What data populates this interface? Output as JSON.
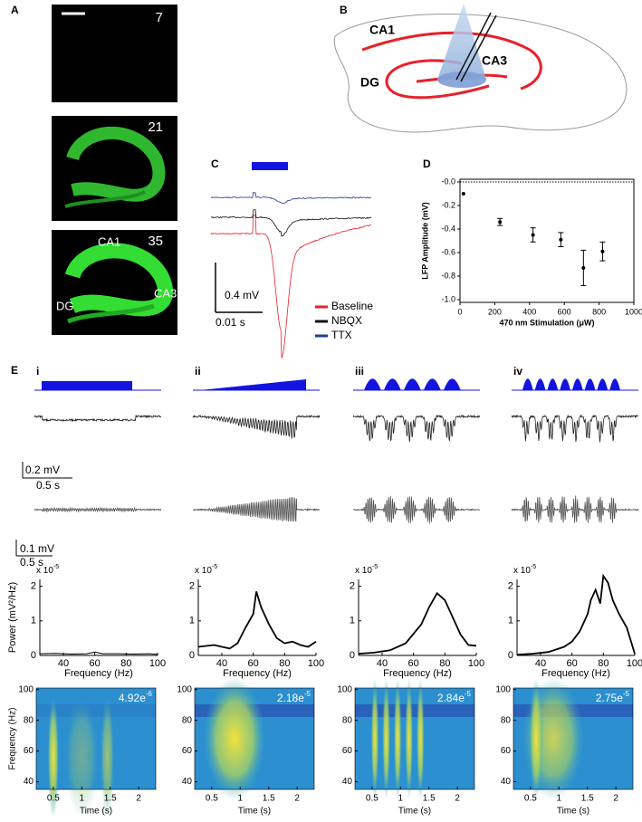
{
  "panel_labels": [
    "A",
    "B",
    "C",
    "D",
    "E"
  ],
  "panel_a": {
    "image_numbers": [
      "7",
      "21",
      "35"
    ],
    "regions": [
      "CA1",
      "CA3",
      "DG"
    ]
  },
  "panel_b": {
    "labels": [
      "CA1",
      "CA3",
      "DG"
    ]
  },
  "panel_c": {
    "scale_voltage": "0.4 mV",
    "scale_time": "0.01 s",
    "legend": [
      {
        "name": "Baseline",
        "color": "#e8202a"
      },
      {
        "name": "NBQX",
        "color": "#111111"
      },
      {
        "name": "TTX",
        "color": "#1f3f8f"
      }
    ]
  },
  "panel_e": {
    "columns": [
      "i",
      "ii",
      "iii",
      "iv"
    ],
    "scale_1": [
      "0.2 mV",
      "0.5 s"
    ],
    "scale_2": [
      "0.1 mV",
      "0.5 s"
    ]
  },
  "chart_data": [
    {
      "type": "errorbar",
      "xlabel": "470 nm Stimulation (μW)",
      "ylabel": "LFP Amplitude (mV)",
      "xlim": [
        0,
        1000
      ],
      "xticks": [
        0,
        200,
        400,
        600,
        800,
        1000
      ],
      "ylim": [
        -1,
        0
      ],
      "yticks": [
        {
          "value": -1,
          "label": "-1.0"
        },
        -0.8,
        -0.6,
        -0.4,
        -0.2,
        {
          "value": 0,
          "label": "-0.0"
        }
      ],
      "reference_line": 0,
      "color": "#000000",
      "series": [
        {
          "x": [
            20,
            230,
            420,
            580,
            710,
            820
          ],
          "values": [
            -0.1,
            -0.34,
            -0.45,
            -0.49,
            -0.73,
            -0.59
          ],
          "errors": [
            0,
            0.03,
            0.06,
            0.06,
            0.15,
            0.08
          ]
        }
      ]
    },
    {
      "type": "line",
      "xlabel": "Frequency (Hz)",
      "ylabel": "Power (mV²/Hz)",
      "multiplier": {
        "base": "x 10",
        "exponent": "-5"
      },
      "xlim": [
        25,
        100
      ],
      "xticks": [
        40,
        60,
        80,
        100
      ],
      "ylim": [
        0,
        2.2
      ],
      "yticks": [
        0,
        1,
        2
      ],
      "color": "#000000",
      "x": [
        25,
        35,
        45,
        55,
        60,
        65,
        75,
        85,
        95,
        100
      ],
      "values": [
        0.05,
        0.06,
        0.04,
        0.05,
        0.1,
        0.05,
        0.05,
        0.04,
        0.05,
        0.03
      ]
    },
    {
      "type": "line",
      "xlabel": "Frequency (Hz)",
      "multiplier": {
        "base": "x 10",
        "exponent": "-5"
      },
      "xlim": [
        25,
        100
      ],
      "xticks": [
        40,
        60,
        80,
        100
      ],
      "ylim": [
        0,
        2.2
      ],
      "yticks": [
        0,
        1,
        2
      ],
      "color": "#000000",
      "x": [
        25,
        35,
        45,
        50,
        55,
        60,
        62,
        65,
        70,
        75,
        80,
        85,
        90,
        95,
        100
      ],
      "values": [
        0.25,
        0.3,
        0.2,
        0.35,
        0.8,
        1.2,
        1.85,
        1.4,
        0.9,
        0.5,
        0.35,
        0.4,
        0.3,
        0.25,
        0.4
      ]
    },
    {
      "type": "line",
      "xlabel": "Frequency (Hz)",
      "multiplier": {
        "base": "x 10",
        "exponent": "-5"
      },
      "xlim": [
        25,
        100
      ],
      "xticks": [
        40,
        60,
        80,
        100
      ],
      "ylim": [
        0,
        2.2
      ],
      "yticks": [
        0,
        1,
        2
      ],
      "color": "#000000",
      "x": [
        25,
        35,
        45,
        55,
        65,
        70,
        75,
        80,
        85,
        90,
        95,
        100
      ],
      "values": [
        0.05,
        0.08,
        0.15,
        0.35,
        0.9,
        1.4,
        1.8,
        1.6,
        1.1,
        0.6,
        0.3,
        0.28
      ]
    },
    {
      "type": "line",
      "xlabel": "Frequency (Hz)",
      "multiplier": {
        "base": "x 10",
        "exponent": "-5"
      },
      "xlim": [
        25,
        100
      ],
      "xticks": [
        40,
        60,
        80,
        100
      ],
      "ylim": [
        0,
        2.2
      ],
      "yticks": [
        0,
        1,
        2
      ],
      "color": "#000000",
      "x": [
        25,
        35,
        45,
        55,
        60,
        65,
        70,
        72,
        75,
        78,
        80,
        83,
        86,
        90,
        95,
        100
      ],
      "values": [
        0.02,
        0.05,
        0.1,
        0.25,
        0.4,
        0.7,
        1.2,
        1.6,
        1.9,
        1.5,
        2.3,
        2.1,
        1.6,
        1.2,
        0.8,
        0.05
      ]
    },
    {
      "type": "heatmap",
      "xlabel": "Time (s)",
      "ylabel": "Frequency (Hz)",
      "annotation": {
        "mantissa": "4.92e",
        "exponent": "-6"
      },
      "xlim": [
        0.2,
        2.3
      ],
      "xticks": [
        0.5,
        1,
        1.5,
        2
      ],
      "ylim": [
        35,
        101
      ],
      "yticks": [
        40,
        60,
        80,
        100
      ]
    },
    {
      "type": "heatmap",
      "xlabel": "Time (s)",
      "annotation": {
        "mantissa": "2.18e",
        "exponent": "-5"
      },
      "xlim": [
        0.2,
        2.3
      ],
      "xticks": [
        0.5,
        1,
        1.5,
        2
      ],
      "ylim": [
        35,
        101
      ],
      "yticks": [
        40,
        60,
        80,
        100
      ]
    },
    {
      "type": "heatmap",
      "xlabel": "Time (s)",
      "annotation": {
        "mantissa": "2.84e",
        "exponent": "-5"
      },
      "xlim": [
        0.2,
        2.3
      ],
      "xticks": [
        0.5,
        1,
        1.5,
        2
      ],
      "ylim": [
        35,
        101
      ],
      "yticks": [
        40,
        60,
        80,
        100
      ]
    },
    {
      "type": "heatmap",
      "xlabel": "Time (s)",
      "annotation": {
        "mantissa": "2.75e",
        "exponent": "-5"
      },
      "xlim": [
        0.2,
        2.3
      ],
      "xticks": [
        0.5,
        1,
        1.5,
        2
      ],
      "ylim": [
        35,
        101
      ],
      "yticks": [
        40,
        60,
        80,
        100
      ]
    }
  ]
}
